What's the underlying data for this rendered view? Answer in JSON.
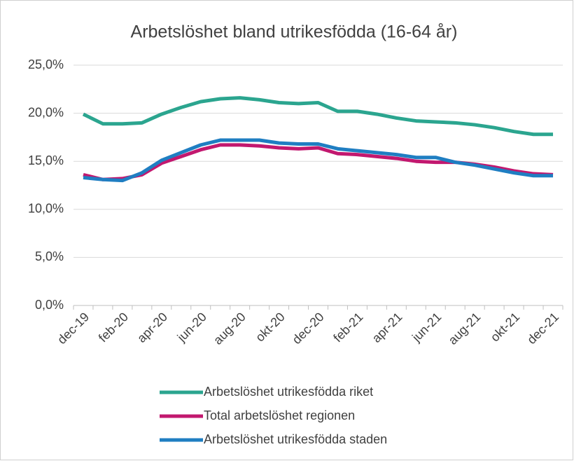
{
  "chart_data": {
    "type": "line",
    "title": "Arbetslöshet bland utrikesfödda (16-64 år)",
    "categories": [
      "dec-19",
      null,
      "feb-20",
      null,
      "apr-20",
      null,
      "jun-20",
      null,
      "aug-20",
      null,
      "okt-20",
      null,
      "dec-20",
      null,
      "feb-21",
      null,
      "apr-21",
      null,
      "jun-21",
      null,
      "aug-21",
      null,
      "okt-21",
      null,
      "dec-21"
    ],
    "series": [
      {
        "name": "Arbetslöshet utrikesfödda riket",
        "color": "#2ba58f",
        "values": [
          19.9,
          18.9,
          18.9,
          19.0,
          19.9,
          20.6,
          21.2,
          21.5,
          21.6,
          21.4,
          21.1,
          21.0,
          21.1,
          20.2,
          20.2,
          19.9,
          19.5,
          19.2,
          19.1,
          19.0,
          18.8,
          18.5,
          18.1,
          17.8,
          17.8
        ]
      },
      {
        "name": "Total arbetslöshet regionen",
        "color": "#c2186f",
        "values": [
          13.6,
          13.1,
          13.2,
          13.6,
          14.8,
          15.5,
          16.2,
          16.7,
          16.7,
          16.6,
          16.4,
          16.3,
          16.4,
          15.8,
          15.7,
          15.5,
          15.3,
          15.0,
          14.9,
          14.9,
          14.7,
          14.4,
          14.0,
          13.7,
          13.6
        ]
      },
      {
        "name": "Arbetslöshet utrikesfödda staden",
        "color": "#1f7ec2",
        "values": [
          13.3,
          13.1,
          13.0,
          13.8,
          15.1,
          15.9,
          16.7,
          17.2,
          17.2,
          17.2,
          16.9,
          16.8,
          16.8,
          16.3,
          16.1,
          15.9,
          15.7,
          15.4,
          15.4,
          14.9,
          14.6,
          14.2,
          13.8,
          13.5,
          13.5
        ]
      }
    ],
    "ylim": [
      0,
      25
    ],
    "yticks": [
      {
        "value": 0,
        "label": "0,0%"
      },
      {
        "value": 5,
        "label": "5,0%"
      },
      {
        "value": 10,
        "label": "10,0%"
      },
      {
        "value": 15,
        "label": "15,0%"
      },
      {
        "value": 20,
        "label": "20,0%"
      },
      {
        "value": 25,
        "label": "25,0%"
      }
    ],
    "grid": true,
    "legend": "bottom"
  }
}
